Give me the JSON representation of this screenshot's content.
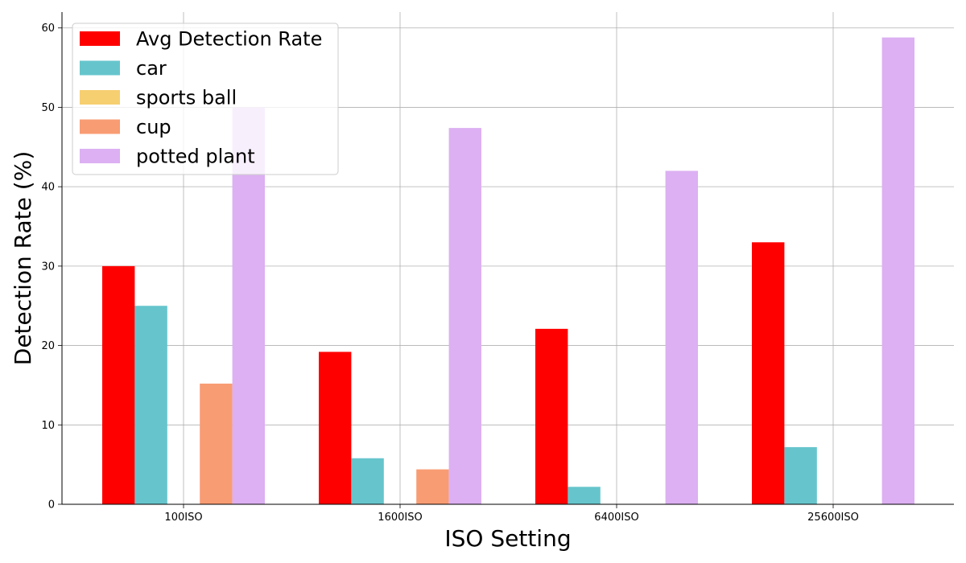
{
  "chart_data": {
    "type": "bar",
    "title": "",
    "xlabel": "ISO Setting",
    "ylabel": "Detection Rate (%)",
    "categories": [
      "100ISO",
      "1600ISO",
      "6400ISO",
      "25600ISO"
    ],
    "ylim": [
      0,
      62
    ],
    "yticks": [
      0,
      10,
      20,
      30,
      40,
      50,
      60
    ],
    "grid": true,
    "legend_position": "top-left",
    "series": [
      {
        "name": "Avg Detection Rate",
        "color": "#ff0000",
        "values": [
          30.0,
          19.2,
          22.1,
          33.0
        ]
      },
      {
        "name": "car",
        "color": "#66c5cc",
        "values": [
          25.0,
          5.8,
          2.2,
          7.2
        ]
      },
      {
        "name": "sports ball",
        "color": "#f6cf71",
        "values": [
          0,
          0,
          0,
          0
        ]
      },
      {
        "name": "cup",
        "color": "#f89c74",
        "values": [
          15.2,
          4.4,
          0,
          0
        ]
      },
      {
        "name": "potted plant",
        "color": "#dcb0f2",
        "values": [
          50.0,
          47.4,
          42.0,
          58.8
        ]
      }
    ]
  }
}
